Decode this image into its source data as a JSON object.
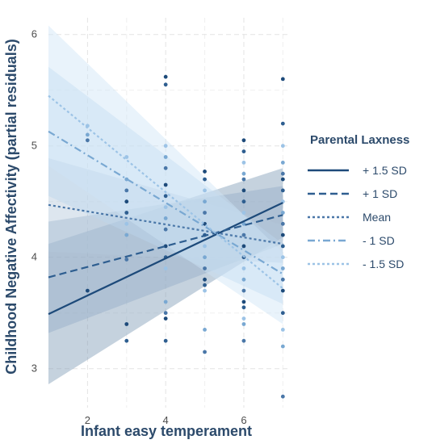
{
  "chart_data": {
    "type": "line",
    "xlabel": "Infant easy temperament",
    "ylabel": "Childhood Negative Affectivity (partial residuals)",
    "xlim": [
      1,
      7.2
    ],
    "ylim": [
      2.65,
      6.15
    ],
    "x_ticks": [
      2,
      4,
      6
    ],
    "y_ticks": [
      3,
      4,
      5,
      6
    ],
    "grid": true,
    "legend": {
      "title": "Parental Laxness",
      "placement": "right"
    },
    "series": [
      {
        "name": "+ 1.5 SD",
        "x": [
          1,
          7
        ],
        "y": [
          3.49,
          4.49
        ],
        "ci_lower": [
          2.86,
          4.18
        ],
        "ci_upper": [
          4.12,
          4.8
        ],
        "color": "#1d4a7a",
        "dash": "solid",
        "fill": "#7e9bb6"
      },
      {
        "name": "+ 1 SD",
        "x": [
          1,
          7
        ],
        "y": [
          3.82,
          4.38
        ],
        "ci_lower": [
          3.32,
          4.12
        ],
        "ci_upper": [
          4.32,
          4.64
        ],
        "color": "#2e5e90",
        "dash": "dashed",
        "fill": "#94aec7"
      },
      {
        "name": "Mean",
        "x": [
          1,
          7
        ],
        "y": [
          4.47,
          4.12
        ],
        "ci_lower": [
          4.05,
          3.95
        ],
        "ci_upper": [
          4.89,
          4.29
        ],
        "color": "#4a77a8",
        "dash": "dotted",
        "fill": "#b3c8dc"
      },
      {
        "name": "- 1 SD",
        "x": [
          1,
          7
        ],
        "y": [
          5.13,
          3.85
        ],
        "ci_lower": [
          4.55,
          3.58
        ],
        "ci_upper": [
          5.71,
          4.12
        ],
        "color": "#79a8d2",
        "dash": "dashdot",
        "fill": "#bdd6ee"
      },
      {
        "name": "- 1.5 SD",
        "x": [
          1,
          7
        ],
        "y": [
          5.45,
          3.72
        ],
        "ci_lower": [
          4.82,
          3.4
        ],
        "ci_upper": [
          6.08,
          4.04
        ],
        "color": "#9cc3e6",
        "dash": "dotted",
        "fill": "#cfe4f6"
      }
    ],
    "points": [
      {
        "x": 2,
        "y": 3.7
      },
      {
        "x": 2,
        "y": 5.05
      },
      {
        "x": 2,
        "y": 5.1
      },
      {
        "x": 2,
        "y": 5.18
      },
      {
        "x": 3,
        "y": 3.25
      },
      {
        "x": 3,
        "y": 3.4
      },
      {
        "x": 3,
        "y": 3.98
      },
      {
        "x": 3,
        "y": 4.2
      },
      {
        "x": 3,
        "y": 4.3
      },
      {
        "x": 3,
        "y": 4.4
      },
      {
        "x": 3,
        "y": 4.5
      },
      {
        "x": 3,
        "y": 4.6
      },
      {
        "x": 3,
        "y": 4.7
      },
      {
        "x": 3,
        "y": 4.9
      },
      {
        "x": 4,
        "y": 3.25
      },
      {
        "x": 4,
        "y": 3.45
      },
      {
        "x": 4,
        "y": 3.5
      },
      {
        "x": 4,
        "y": 3.6
      },
      {
        "x": 4,
        "y": 3.9
      },
      {
        "x": 4,
        "y": 4.0
      },
      {
        "x": 4,
        "y": 4.1
      },
      {
        "x": 4,
        "y": 4.25
      },
      {
        "x": 4,
        "y": 4.35
      },
      {
        "x": 4,
        "y": 4.45
      },
      {
        "x": 4,
        "y": 4.55
      },
      {
        "x": 4,
        "y": 4.65
      },
      {
        "x": 4,
        "y": 4.8
      },
      {
        "x": 4,
        "y": 4.9
      },
      {
        "x": 4,
        "y": 5.0
      },
      {
        "x": 4,
        "y": 5.55
      },
      {
        "x": 4,
        "y": 5.62
      },
      {
        "x": 5,
        "y": 3.15
      },
      {
        "x": 5,
        "y": 3.35
      },
      {
        "x": 5,
        "y": 3.7
      },
      {
        "x": 5,
        "y": 3.75
      },
      {
        "x": 5,
        "y": 3.8
      },
      {
        "x": 5,
        "y": 3.9
      },
      {
        "x": 5,
        "y": 4.0
      },
      {
        "x": 5,
        "y": 4.1
      },
      {
        "x": 5,
        "y": 4.2
      },
      {
        "x": 5,
        "y": 4.3
      },
      {
        "x": 5,
        "y": 4.4
      },
      {
        "x": 5,
        "y": 4.5
      },
      {
        "x": 5,
        "y": 4.6
      },
      {
        "x": 5,
        "y": 4.7
      },
      {
        "x": 5,
        "y": 4.77
      },
      {
        "x": 6,
        "y": 3.25
      },
      {
        "x": 6,
        "y": 3.4
      },
      {
        "x": 6,
        "y": 3.45
      },
      {
        "x": 6,
        "y": 3.55
      },
      {
        "x": 6,
        "y": 3.6
      },
      {
        "x": 6,
        "y": 3.7
      },
      {
        "x": 6,
        "y": 3.8
      },
      {
        "x": 6,
        "y": 3.9
      },
      {
        "x": 6,
        "y": 4.0
      },
      {
        "x": 6,
        "y": 4.1
      },
      {
        "x": 6,
        "y": 4.2
      },
      {
        "x": 6,
        "y": 4.3
      },
      {
        "x": 6,
        "y": 4.4
      },
      {
        "x": 6,
        "y": 4.5
      },
      {
        "x": 6,
        "y": 4.6
      },
      {
        "x": 6,
        "y": 4.7
      },
      {
        "x": 6,
        "y": 4.75
      },
      {
        "x": 6,
        "y": 4.85
      },
      {
        "x": 6,
        "y": 4.95
      },
      {
        "x": 6,
        "y": 5.05
      },
      {
        "x": 7,
        "y": 2.75
      },
      {
        "x": 7,
        "y": 3.2
      },
      {
        "x": 7,
        "y": 3.35
      },
      {
        "x": 7,
        "y": 3.5
      },
      {
        "x": 7,
        "y": 3.7
      },
      {
        "x": 7,
        "y": 3.8
      },
      {
        "x": 7,
        "y": 3.9
      },
      {
        "x": 7,
        "y": 4.0
      },
      {
        "x": 7,
        "y": 4.1
      },
      {
        "x": 7,
        "y": 4.2
      },
      {
        "x": 7,
        "y": 4.3
      },
      {
        "x": 7,
        "y": 4.4
      },
      {
        "x": 7,
        "y": 4.5
      },
      {
        "x": 7,
        "y": 4.6
      },
      {
        "x": 7,
        "y": 4.7
      },
      {
        "x": 7,
        "y": 4.75
      },
      {
        "x": 7,
        "y": 4.85
      },
      {
        "x": 7,
        "y": 5.0
      },
      {
        "x": 7,
        "y": 5.2
      },
      {
        "x": 7,
        "y": 5.6
      }
    ]
  }
}
